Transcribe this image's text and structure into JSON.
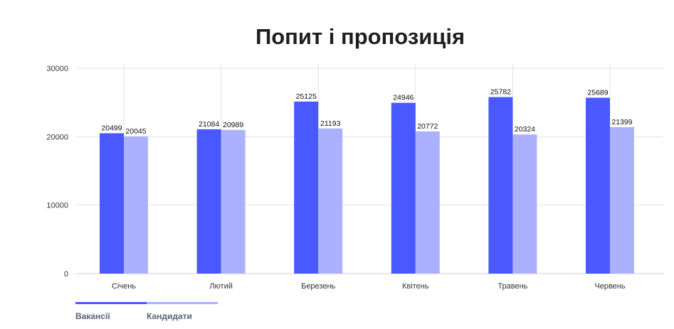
{
  "chart_data": {
    "type": "bar",
    "title": "Попит і пропозиція",
    "categories": [
      "Січень",
      "Лютий",
      "Березень",
      "Квітень",
      "Травень",
      "Червень"
    ],
    "series": [
      {
        "name": "Вакансії",
        "color": "#4a58ff",
        "values": [
          20499,
          21084,
          25125,
          24946,
          25782,
          25689
        ]
      },
      {
        "name": "Кандидати",
        "color": "#abb1fe",
        "values": [
          20045,
          20989,
          21193,
          20772,
          20324,
          21399
        ]
      }
    ],
    "yticks": [
      0,
      10000,
      20000,
      30000
    ],
    "ylim": [
      0,
      30000
    ],
    "grid": true,
    "legend_position": "bottom-left",
    "data_labels": true
  }
}
